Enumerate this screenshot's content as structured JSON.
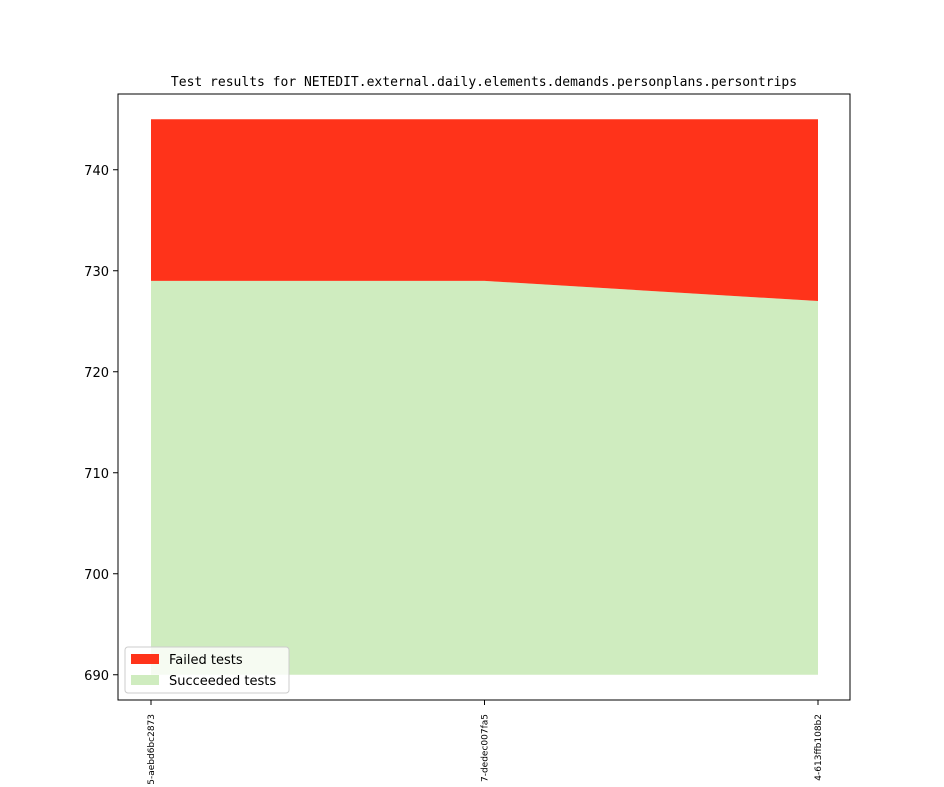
{
  "chart_data": {
    "type": "area",
    "title": "Test results for NETEDIT.external.daily.elements.demands.personplans.persontrips",
    "xlabel": "",
    "ylabel": "",
    "categories": [
      "5-aebd6bc2873",
      "7-dedec007fa5",
      "4-613ffb108b2"
    ],
    "ylim": [
      687.5,
      747.5
    ],
    "yticks": [
      690,
      700,
      710,
      720,
      730,
      740
    ],
    "baseline": 690,
    "series": [
      {
        "name": "Succeeded tests",
        "values": [
          729,
          729,
          727
        ],
        "color": "#cfecbf"
      },
      {
        "name": "Failed tests",
        "values": [
          16,
          16,
          18
        ],
        "color": "#ff331a"
      }
    ],
    "legend": {
      "placement": "lower-left",
      "entries": [
        {
          "label": "Failed tests",
          "color": "#ff331a"
        },
        {
          "label": "Succeeded tests",
          "color": "#cfecbf"
        }
      ]
    },
    "grid": false
  }
}
